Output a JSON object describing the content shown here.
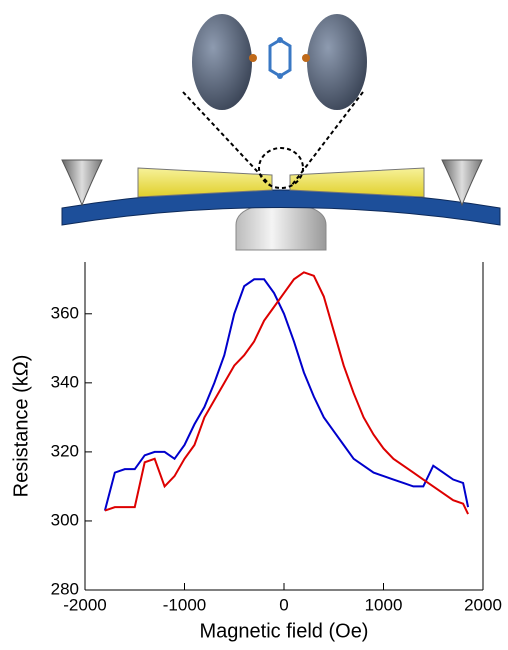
{
  "chart_data": {
    "type": "line",
    "x_label": "Magnetic field (Oe)",
    "y_label": "Resistance (kΩ)",
    "x": [
      -1800,
      -1700,
      -1600,
      -1500,
      -1400,
      -1300,
      -1200,
      -1100,
      -1000,
      -900,
      -800,
      -700,
      -600,
      -500,
      -400,
      -300,
      -200,
      -100,
      0,
      100,
      200,
      300,
      400,
      500,
      600,
      700,
      800,
      900,
      1000,
      1100,
      1200,
      1300,
      1400,
      1500,
      1600,
      1700,
      1800,
      1850
    ],
    "series": [
      {
        "color": "#0000cc",
        "values": [
          303,
          314,
          315,
          315,
          319,
          320,
          320,
          318,
          322,
          328,
          333,
          340,
          348,
          360,
          368,
          370,
          370,
          366,
          360,
          352,
          343,
          336,
          330,
          326,
          322,
          318,
          316,
          314,
          313,
          312,
          311,
          310,
          310,
          316,
          314,
          312,
          311,
          304
        ]
      },
      {
        "color": "#dd0000",
        "values": [
          303,
          304,
          304,
          304,
          317,
          318,
          310,
          313,
          318,
          322,
          330,
          335,
          340,
          345,
          348,
          352,
          358,
          362,
          366,
          370,
          372,
          371,
          365,
          355,
          345,
          337,
          330,
          325,
          321,
          318,
          316,
          314,
          312,
          310,
          308,
          306,
          305,
          302
        ]
      }
    ],
    "xlim": [
      -2000,
      2000
    ],
    "xticks": [
      -2000,
      -1000,
      0,
      1000,
      2000
    ],
    "ylim": [
      280,
      375
    ],
    "yticks": [
      280,
      300,
      320,
      340,
      360
    ]
  }
}
